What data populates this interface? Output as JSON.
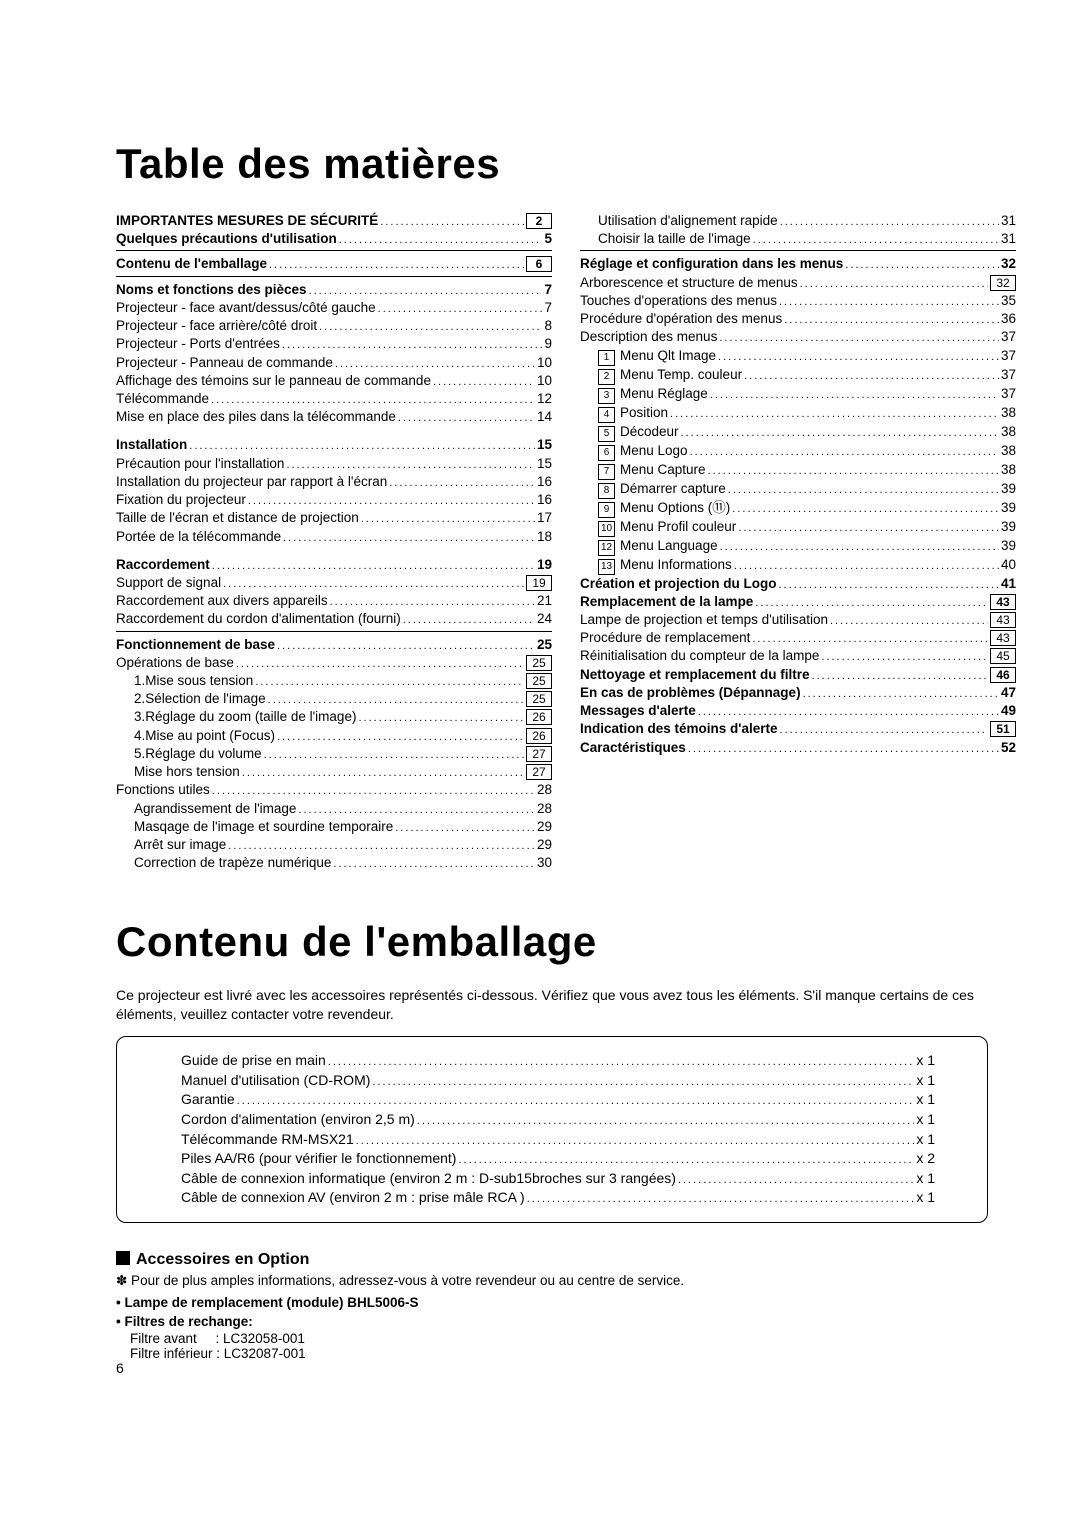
{
  "title1": "Table des matières",
  "title2": "Contenu de l'emballage",
  "intro": "Ce projecteur est livré avec les accessoires représentés ci-dessous. Vérifiez que vous avez tous les éléments. S'il manque certains de ces éléments, veuillez contacter votre revendeur.",
  "toc_left": [
    {
      "label": "IMPORTANTES MESURES DE SÉCURITÉ",
      "page": "2",
      "bold": true,
      "boxed": true
    },
    {
      "label": "Quelques précautions d'utilisation",
      "page": "5",
      "bold": true
    },
    {
      "sep": true
    },
    {
      "label": "Contenu de l'emballage",
      "page": "6",
      "bold": true,
      "boxed": true
    },
    {
      "sep": true
    },
    {
      "label": "Noms et fonctions des pièces",
      "page": "7",
      "bold": true
    },
    {
      "label": "Projecteur - face avant/dessus/côté gauche",
      "page": "7"
    },
    {
      "label": "Projecteur - face arrière/côté droit",
      "page": "8"
    },
    {
      "label": "Projecteur - Ports d'entrées",
      "page": "9"
    },
    {
      "label": "Projecteur - Panneau de commande",
      "page": "10"
    },
    {
      "label": "Affichage des témoins sur le panneau de commande",
      "page": "10"
    },
    {
      "label": "Télécommande",
      "page": "12"
    },
    {
      "label": "Mise en place des piles dans la télécommande",
      "page": "14"
    },
    {
      "gap": true
    },
    {
      "label": "Installation",
      "page": "15",
      "bold": true
    },
    {
      "label": "Précaution pour l'installation",
      "page": "15"
    },
    {
      "label": "Installation du projecteur par rapport à l'écran",
      "page": "16"
    },
    {
      "label": "Fixation du projecteur",
      "page": "16"
    },
    {
      "label": "Taille de l'écran et distance de projection",
      "page": "17"
    },
    {
      "label": "Portée de la télécommande",
      "page": "18"
    },
    {
      "gap": true
    },
    {
      "label": "Raccordement",
      "page": "19",
      "bold": true
    },
    {
      "label": "Support de signal",
      "page": "19",
      "boxed": true
    },
    {
      "label": "Raccordement aux divers appareils",
      "page": "21"
    },
    {
      "label": "Raccordement du cordon d'alimentation (fourni)",
      "page": "24"
    },
    {
      "sep": true
    },
    {
      "label": "Fonctionnement de base",
      "page": "25",
      "bold": true
    },
    {
      "label": "Opérations de base",
      "page": "25",
      "boxed": true
    },
    {
      "label": "1.Mise sous tension",
      "page": "25",
      "indent": 1,
      "boxed": true
    },
    {
      "label": "2.Sélection de l'image",
      "page": "25",
      "indent": 1,
      "boxed": true
    },
    {
      "label": "3.Réglage du zoom (taille de l'image)",
      "page": "26",
      "indent": 1,
      "boxed": true
    },
    {
      "label": "4.Mise au point (Focus)",
      "page": "26",
      "indent": 1,
      "boxed": true
    },
    {
      "label": "5.Réglage du volume",
      "page": "27",
      "indent": 1,
      "boxed": true
    },
    {
      "label": "Mise hors tension",
      "page": "27",
      "indent": 1,
      "boxed": true
    },
    {
      "label": "Fonctions utiles",
      "page": "28"
    },
    {
      "label": "Agrandissement de l'image",
      "page": "28",
      "indent": 1
    },
    {
      "label": "Masqage de l'image et sourdine temporaire",
      "page": "29",
      "indent": 1
    },
    {
      "label": "Arrêt sur image",
      "page": "29",
      "indent": 1
    },
    {
      "label": "Correction de trapèze numérique",
      "page": "30",
      "indent": 1
    }
  ],
  "toc_right": [
    {
      "label": "Utilisation d'alignement rapide",
      "page": "31",
      "indent": 1
    },
    {
      "label": "Choisir la taille de l'image",
      "page": "31",
      "indent": 1
    },
    {
      "sep": true
    },
    {
      "label": "Réglage et configuration dans les menus",
      "page": "32",
      "bold": true
    },
    {
      "label": "Arborescence et structure de menus",
      "page": "32",
      "boxed": true
    },
    {
      "label": "Touches d'operations des menus",
      "page": "35"
    },
    {
      "label": "Procédure d'opération des menus",
      "page": "36"
    },
    {
      "label": "Description des menus",
      "page": "37"
    },
    {
      "num": "1",
      "label": "Menu Qlt Image",
      "page": "37",
      "indent": 1
    },
    {
      "num": "2",
      "label": "Menu Temp. couleur",
      "page": "37",
      "indent": 1
    },
    {
      "num": "3",
      "label": "Menu Réglage",
      "page": "37",
      "indent": 1
    },
    {
      "num": "4",
      "label": "Position",
      "page": "38",
      "indent": 1
    },
    {
      "num": "5",
      "label": "Décodeur",
      "page": "38",
      "indent": 1
    },
    {
      "num": "6",
      "label": "Menu Logo",
      "page": "38",
      "indent": 1
    },
    {
      "num": "7",
      "label": "Menu Capture",
      "page": "38",
      "indent": 1
    },
    {
      "num": "8",
      "label": "Démarrer capture",
      "page": "39",
      "indent": 1
    },
    {
      "num": "9",
      "label": "Menu Options  (⑪)",
      "page": "39",
      "indent": 1
    },
    {
      "num": "10",
      "label": "Menu Profil couleur",
      "page": "39",
      "indent": 1
    },
    {
      "num": "12",
      "label": "Menu Language",
      "page": "39",
      "indent": 1
    },
    {
      "num": "13",
      "label": "Menu Informations",
      "page": "40",
      "indent": 1
    },
    {
      "label": "Création et projection du Logo",
      "page": "41",
      "bold": true
    },
    {
      "label": "Remplacement de la lampe",
      "page": "43",
      "bold": true,
      "boxed": true
    },
    {
      "label": "Lampe de projection et temps d'utilisation",
      "page": "43",
      "boxed": true
    },
    {
      "label": "Procédure de remplacement",
      "page": "43",
      "boxed": true
    },
    {
      "label": "Réinitialisation du compteur de la lampe",
      "page": "45",
      "boxed": true
    },
    {
      "label": "Nettoyage et remplacement du filtre",
      "page": "46",
      "bold": true,
      "boxed": true
    },
    {
      "label": "En cas de problèmes (Dépannage)",
      "page": "47",
      "bold": true
    },
    {
      "label": "Messages d'alerte",
      "page": "49",
      "bold": true
    },
    {
      "label": "Indication des témoins d'alerte",
      "page": "51",
      "bold": true,
      "boxed": true
    },
    {
      "label": "Caractéristiques",
      "page": "52",
      "bold": true
    }
  ],
  "package_items": [
    {
      "label": "Guide de prise en main",
      "qty": "x 1"
    },
    {
      "label": "Manuel d'utilisation (CD-ROM)",
      "qty": "x 1"
    },
    {
      "label": "Garantie",
      "qty": "x 1"
    },
    {
      "label": "Cordon d'alimentation (environ 2,5 m)",
      "qty": "x 1"
    },
    {
      "label": "Télécommande RM-MSX21",
      "qty": "x 1"
    },
    {
      "label": "Piles AA/R6 (pour vérifier le fonctionnement)",
      "qty": "x 2"
    },
    {
      "label": "Câble de connexion informatique (environ 2 m : D-sub15broches sur 3 rangées)",
      "qty": "x 1"
    },
    {
      "label": "Câble de connexion AV (environ 2 m : prise mâle RCA )",
      "qty": "x 1"
    }
  ],
  "opts_heading": "Accessoires en Option",
  "note": "✽ Pour de plus amples informations, adressez-vous à votre revendeur ou au centre de service.",
  "bullet1": "• Lampe de remplacement (module) BHL5006-S",
  "bullet2": "• Filtres de rechange:",
  "filter1": "Filtre avant     : LC32058-001",
  "filter2": "Filtre inférieur : LC32087-001",
  "page_number": "6"
}
